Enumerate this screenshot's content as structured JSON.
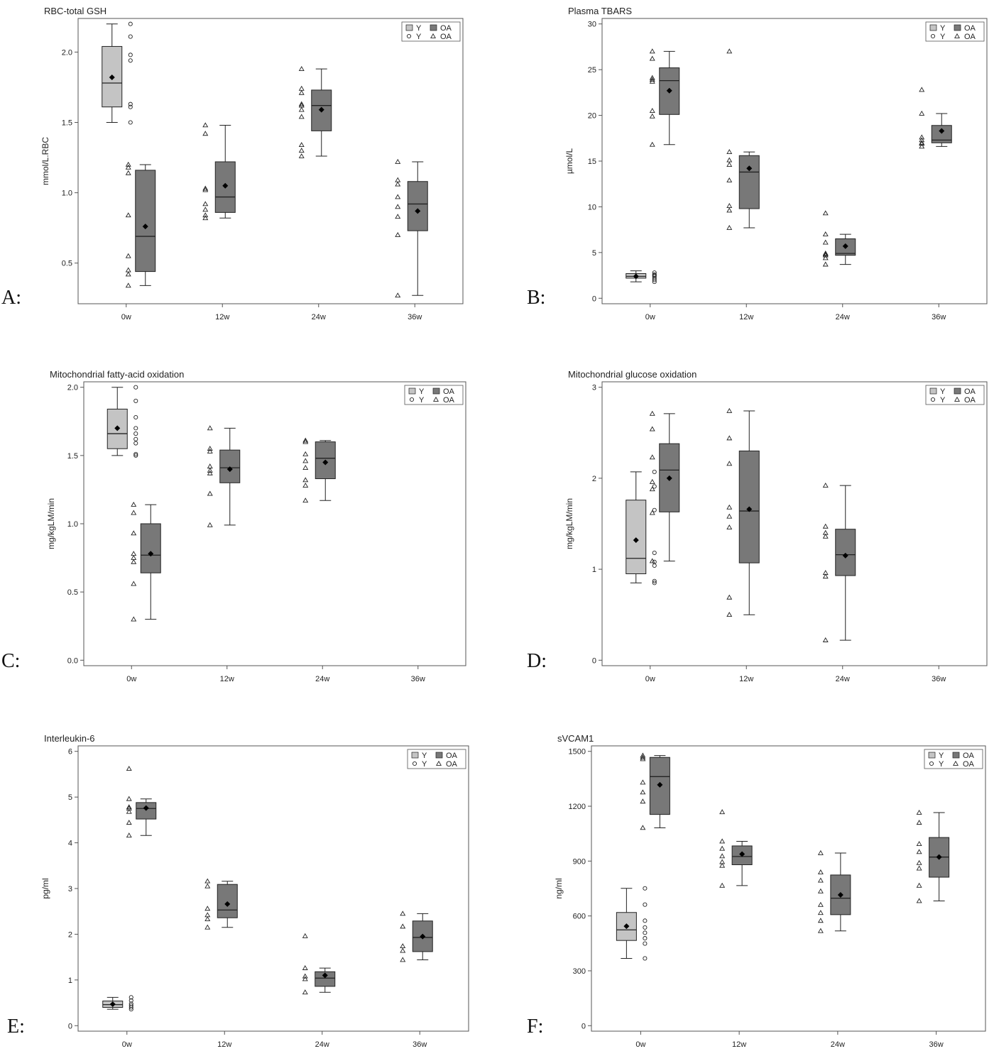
{
  "colors": {
    "Y": "#c4c4c4",
    "OA": "#787878",
    "axis": "#555555",
    "ink": "#222222"
  },
  "legend": {
    "box_label_y": "Y",
    "box_label_oa": "OA",
    "pt_label_y": "Y",
    "pt_label_oa": "OA",
    "placement": "top-right"
  },
  "chart_data": [
    {
      "panel": "A:",
      "type": "box",
      "title": "RBC-total GSH",
      "ylabel": "mmol/L.RBC",
      "categories": [
        "0w",
        "12w",
        "24w",
        "36w"
      ],
      "ylim": [
        0.25,
        2.2
      ],
      "yticks": [
        0.5,
        1.0,
        1.5,
        2.0
      ],
      "ytick_labels": [
        "0.5",
        "1.0",
        "1.5",
        "2.0"
      ],
      "series": [
        {
          "name": "Y",
          "boxes": [
            {
              "cat": 0,
              "min": 1.5,
              "q1": 1.61,
              "median": 1.78,
              "q3": 2.04,
              "max": 2.2,
              "mean": 1.82,
              "points": [
                2.2,
                2.11,
                1.98,
                1.94,
                1.63,
                1.61,
                1.5
              ]
            }
          ]
        },
        {
          "name": "OA",
          "boxes": [
            {
              "cat": 0,
              "min": 0.34,
              "q1": 0.44,
              "median": 0.69,
              "q3": 1.16,
              "max": 1.2,
              "mean": 0.76,
              "points": [
                1.2,
                1.18,
                1.14,
                0.84,
                0.55,
                0.45,
                0.42,
                0.34
              ]
            },
            {
              "cat": 1,
              "min": 0.82,
              "q1": 0.86,
              "median": 0.97,
              "q3": 1.22,
              "max": 1.48,
              "mean": 1.05,
              "points": [
                1.48,
                1.42,
                1.03,
                1.02,
                0.92,
                0.88,
                0.84,
                0.82
              ]
            },
            {
              "cat": 2,
              "min": 1.26,
              "q1": 1.44,
              "median": 1.62,
              "q3": 1.73,
              "max": 1.88,
              "mean": 1.59,
              "points": [
                1.88,
                1.74,
                1.71,
                1.63,
                1.62,
                1.59,
                1.54,
                1.34,
                1.3,
                1.26
              ]
            },
            {
              "cat": 3,
              "min": 0.27,
              "q1": 0.73,
              "median": 0.92,
              "q3": 1.08,
              "max": 1.22,
              "mean": 0.87,
              "points": [
                1.22,
                1.09,
                1.06,
                0.97,
                0.9,
                0.83,
                0.7,
                0.27
              ]
            }
          ]
        }
      ]
    },
    {
      "panel": "B:",
      "type": "box",
      "title": "Plasma TBARS",
      "ylabel": "µmol/L",
      "categories": [
        "0w",
        "12w",
        "24w",
        "36w"
      ],
      "ylim": [
        0,
        30
      ],
      "yticks": [
        0,
        5,
        10,
        15,
        20,
        25,
        30
      ],
      "ytick_labels": [
        "0",
        "5",
        "10",
        "15",
        "20",
        "25",
        "30"
      ],
      "series": [
        {
          "name": "Y",
          "boxes": [
            {
              "cat": 0,
              "min": 1.8,
              "q1": 2.2,
              "median": 2.4,
              "q3": 2.7,
              "max": 3.0,
              "mean": 2.4,
              "points": [
                2.8,
                2.6,
                2.5,
                2.4,
                2.2,
                2.0,
                1.8
              ]
            }
          ]
        },
        {
          "name": "OA",
          "boxes": [
            {
              "cat": 0,
              "min": 16.8,
              "q1": 20.1,
              "median": 23.8,
              "q3": 25.2,
              "max": 27.0,
              "mean": 22.7,
              "points": [
                27.0,
                26.2,
                24.1,
                23.9,
                23.7,
                20.5,
                19.9,
                16.8
              ]
            },
            {
              "cat": 1,
              "min": 7.7,
              "q1": 9.8,
              "median": 13.8,
              "q3": 15.6,
              "max": 16.0,
              "mean": 14.2,
              "points": [
                27.0,
                16.0,
                15.1,
                14.6,
                12.9,
                10.1,
                9.6,
                7.7
              ]
            },
            {
              "cat": 2,
              "min": 3.7,
              "q1": 4.7,
              "median": 4.9,
              "q3": 6.5,
              "max": 7.0,
              "mean": 5.7,
              "points": [
                9.3,
                7.0,
                6.1,
                4.9,
                4.8,
                4.7,
                4.4,
                3.7
              ]
            },
            {
              "cat": 3,
              "min": 16.6,
              "q1": 17.0,
              "median": 17.3,
              "q3": 18.9,
              "max": 20.2,
              "mean": 18.3,
              "points": [
                22.8,
                20.2,
                17.6,
                17.3,
                17.0,
                16.9,
                16.6
              ]
            }
          ]
        }
      ]
    },
    {
      "panel": "C:",
      "type": "box",
      "title": "Mitochondrial fatty-acid oxidation",
      "ylabel": "mg/kgLM/min",
      "categories": [
        "0w",
        "12w",
        "24w",
        "36w"
      ],
      "ylim": [
        0,
        2.0
      ],
      "yticks": [
        0,
        0.5,
        1.0,
        1.5,
        2.0
      ],
      "ytick_labels": [
        "0.0",
        "0.5",
        "1.0",
        "1.5",
        "2.0"
      ],
      "series": [
        {
          "name": "Y",
          "boxes": [
            {
              "cat": 0,
              "min": 1.5,
              "q1": 1.55,
              "median": 1.66,
              "q3": 1.84,
              "max": 2.0,
              "mean": 1.7,
              "points": [
                2.0,
                1.9,
                1.78,
                1.7,
                1.66,
                1.62,
                1.59,
                1.51,
                1.5
              ]
            }
          ]
        },
        {
          "name": "OA",
          "boxes": [
            {
              "cat": 0,
              "min": 0.3,
              "q1": 0.64,
              "median": 0.77,
              "q3": 1.0,
              "max": 1.14,
              "mean": 0.78,
              "points": [
                1.14,
                1.08,
                0.93,
                0.78,
                0.75,
                0.72,
                0.56,
                0.3
              ]
            },
            {
              "cat": 1,
              "min": 0.99,
              "q1": 1.3,
              "median": 1.41,
              "q3": 1.54,
              "max": 1.7,
              "mean": 1.4,
              "points": [
                1.7,
                1.55,
                1.53,
                1.42,
                1.39,
                1.37,
                1.22,
                0.99
              ]
            },
            {
              "cat": 2,
              "min": 1.17,
              "q1": 1.33,
              "median": 1.48,
              "q3": 1.6,
              "max": 1.61,
              "mean": 1.45,
              "points": [
                1.61,
                1.6,
                1.51,
                1.46,
                1.41,
                1.32,
                1.28,
                1.17
              ]
            }
          ]
        }
      ]
    },
    {
      "panel": "D:",
      "type": "box",
      "title": "Mitochondrial glucose oxidation",
      "ylabel": "mg/kgLM/min",
      "categories": [
        "0w",
        "12w",
        "24w",
        "36w"
      ],
      "ylim": [
        0,
        3
      ],
      "yticks": [
        0,
        1,
        2,
        3
      ],
      "ytick_labels": [
        "0",
        "1",
        "2",
        "3"
      ],
      "series": [
        {
          "name": "Y",
          "boxes": [
            {
              "cat": 0,
              "min": 0.85,
              "q1": 0.95,
              "median": 1.12,
              "q3": 1.76,
              "max": 2.07,
              "mean": 1.32,
              "points": [
                2.07,
                1.91,
                1.65,
                1.18,
                1.08,
                1.04,
                0.87,
                0.85
              ]
            }
          ]
        },
        {
          "name": "OA",
          "boxes": [
            {
              "cat": 0,
              "min": 1.09,
              "q1": 1.63,
              "median": 2.09,
              "q3": 2.38,
              "max": 2.71,
              "mean": 2.0,
              "points": [
                2.71,
                2.54,
                2.23,
                1.96,
                1.88,
                1.62,
                1.09
              ]
            },
            {
              "cat": 1,
              "min": 0.5,
              "q1": 1.07,
              "median": 1.64,
              "q3": 2.3,
              "max": 2.74,
              "mean": 1.66,
              "points": [
                2.74,
                2.44,
                2.16,
                1.68,
                1.58,
                1.46,
                0.69,
                0.5
              ]
            },
            {
              "cat": 2,
              "min": 0.22,
              "q1": 0.93,
              "median": 1.16,
              "q3": 1.44,
              "max": 1.92,
              "mean": 1.15,
              "points": [
                1.92,
                1.47,
                1.4,
                1.36,
                0.96,
                0.92,
                0.22
              ]
            }
          ]
        }
      ]
    },
    {
      "panel": "E:",
      "type": "box",
      "title": "Interleukin-6",
      "ylabel": "pg/ml",
      "categories": [
        "0w",
        "12w",
        "24w",
        "36w"
      ],
      "ylim": [
        0,
        6
      ],
      "yticks": [
        0,
        1,
        2,
        3,
        4,
        5,
        6
      ],
      "ytick_labels": [
        "0",
        "1",
        "2",
        "3",
        "4",
        "5",
        "6"
      ],
      "series": [
        {
          "name": "Y",
          "boxes": [
            {
              "cat": 0,
              "min": 0.36,
              "q1": 0.4,
              "median": 0.46,
              "q3": 0.54,
              "max": 0.62,
              "mean": 0.47,
              "points": [
                0.62,
                0.55,
                0.48,
                0.44,
                0.4,
                0.36
              ]
            }
          ]
        },
        {
          "name": "OA",
          "boxes": [
            {
              "cat": 0,
              "min": 4.16,
              "q1": 4.52,
              "median": 4.75,
              "q3": 4.88,
              "max": 4.96,
              "mean": 4.76,
              "points": [
                5.62,
                4.96,
                4.78,
                4.75,
                4.68,
                4.44,
                4.16
              ]
            },
            {
              "cat": 1,
              "min": 2.15,
              "q1": 2.36,
              "median": 2.53,
              "q3": 3.09,
              "max": 3.16,
              "mean": 2.66,
              "points": [
                3.16,
                3.05,
                2.56,
                2.42,
                2.33,
                2.15
              ]
            },
            {
              "cat": 2,
              "min": 0.73,
              "q1": 0.86,
              "median": 1.04,
              "q3": 1.18,
              "max": 1.26,
              "mean": 1.1,
              "points": [
                1.96,
                1.26,
                1.08,
                1.02,
                0.73
              ]
            },
            {
              "cat": 3,
              "min": 1.44,
              "q1": 1.62,
              "median": 1.93,
              "q3": 2.29,
              "max": 2.45,
              "mean": 1.95,
              "points": [
                2.45,
                2.17,
                1.74,
                1.64,
                1.44
              ]
            }
          ]
        }
      ]
    },
    {
      "panel": "F:",
      "type": "box",
      "title": "sVCAM1",
      "ylabel": "ng/ml",
      "categories": [
        "0w",
        "12w",
        "24w",
        "36w"
      ],
      "ylim": [
        0,
        1500
      ],
      "yticks": [
        0,
        300,
        600,
        900,
        1200,
        1500
      ],
      "ytick_labels": [
        "0",
        "300",
        "600",
        "900",
        "1200",
        "1500"
      ],
      "series": [
        {
          "name": "Y",
          "boxes": [
            {
              "cat": 0,
              "min": 368,
              "q1": 466,
              "median": 524,
              "q3": 619,
              "max": 751,
              "mean": 544,
              "points": [
                751,
                662,
                574,
                537,
                508,
                478,
                449,
                368
              ]
            }
          ]
        },
        {
          "name": "OA",
          "boxes": [
            {
              "cat": 0,
              "min": 1082,
              "q1": 1155,
              "median": 1362,
              "q3": 1467,
              "max": 1477,
              "mean": 1317,
              "points": [
                1477,
                1467,
                1458,
                1330,
                1276,
                1226,
                1082
              ]
            },
            {
              "cat": 1,
              "min": 766,
              "q1": 880,
              "median": 925,
              "q3": 983,
              "max": 1008,
              "mean": 938,
              "points": [
                1168,
                1008,
                968,
                927,
                895,
                875,
                766
              ]
            },
            {
              "cat": 2,
              "min": 518,
              "q1": 607,
              "median": 697,
              "q3": 824,
              "max": 944,
              "mean": 715,
              "points": [
                944,
                839,
                794,
                735,
                661,
                617,
                574,
                518
              ]
            },
            {
              "cat": 3,
              "min": 682,
              "q1": 812,
              "median": 922,
              "q3": 1029,
              "max": 1165,
              "mean": 922,
              "points": [
                1165,
                1110,
                994,
                950,
                890,
                860,
                766,
                682
              ]
            }
          ]
        }
      ]
    }
  ]
}
